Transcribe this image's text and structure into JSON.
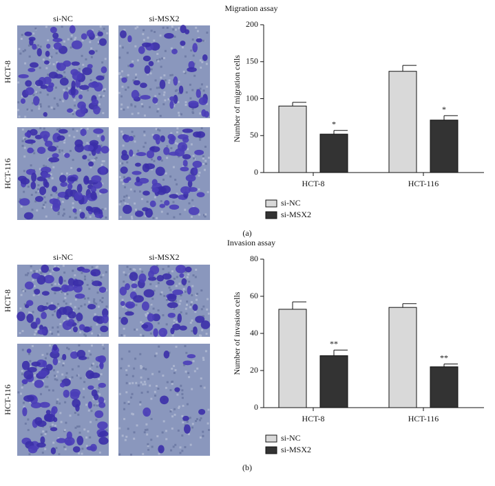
{
  "chart_data": [
    {
      "type": "bar",
      "title": "Migration assay",
      "ylabel": "Number of migration cells",
      "categories": [
        "HCT-8",
        "HCT-116"
      ],
      "series": [
        {
          "name": "si-NC",
          "color": "#d9d9d9",
          "values": [
            90,
            137
          ],
          "errors": [
            5,
            8
          ]
        },
        {
          "name": "si-MSX2",
          "color": "#333333",
          "values": [
            52,
            71
          ],
          "errors": [
            5,
            6
          ]
        }
      ],
      "annotations": [
        {
          "text": "*",
          "series": 1,
          "category": 0
        },
        {
          "text": "*",
          "series": 1,
          "category": 1
        }
      ],
      "ylim": [
        0,
        200
      ],
      "yticks": [
        0,
        50,
        100,
        150,
        200
      ],
      "grid": false,
      "legend": "bottom"
    },
    {
      "type": "bar",
      "title": "Invasion assay",
      "ylabel": "Number of invasion cells",
      "categories": [
        "HCT-8",
        "HCT-116"
      ],
      "series": [
        {
          "name": "si-NC",
          "color": "#d9d9d9",
          "values": [
            53,
            54
          ],
          "errors": [
            4,
            2
          ]
        },
        {
          "name": "si-MSX2",
          "color": "#333333",
          "values": [
            28,
            22
          ],
          "errors": [
            3,
            1.5
          ]
        }
      ],
      "annotations": [
        {
          "text": "**",
          "series": 1,
          "category": 0
        },
        {
          "text": "**",
          "series": 1,
          "category": 1
        }
      ],
      "ylim": [
        0,
        80
      ],
      "yticks": [
        0,
        20,
        40,
        60,
        80
      ],
      "grid": false,
      "legend": "bottom"
    }
  ],
  "panels": [
    {
      "label": "(a)",
      "image_columns": [
        "si-NC",
        "si-MSX2"
      ],
      "image_rows": [
        "HCT-8",
        "HCT-116"
      ]
    },
    {
      "label": "(b)",
      "image_columns": [
        "si-NC",
        "si-MSX2"
      ],
      "image_rows": [
        "HCT-8",
        "HCT-116"
      ]
    }
  ]
}
